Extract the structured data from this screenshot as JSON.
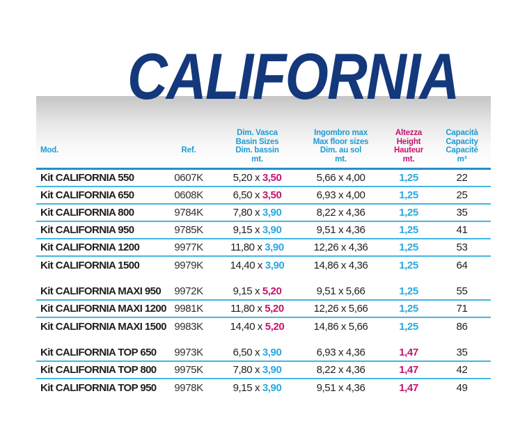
{
  "page": {
    "title": "CALIFORNIA"
  },
  "colors": {
    "navy": "#14387C",
    "cyan": "#2AA9E0",
    "cyan_head": "#1C9BD4",
    "magenta": "#C4146F",
    "row_line": "#45B4E4",
    "header_line": "#2590CC",
    "ink": "#1E1E1E"
  },
  "table": {
    "headers": {
      "mod": "Mod.",
      "ref": "Ref.",
      "basin": [
        "Dim. Vasca",
        "Basin Sizes",
        "Dim. bassin",
        "mt."
      ],
      "floor": [
        "Ingombro max",
        "Max floor sizes",
        "Dim. au sol",
        "mt."
      ],
      "height": [
        "Altezza",
        "Height",
        "Hauteur",
        "mt."
      ],
      "capacity": [
        "Capacità",
        "Capacity",
        "Capacité",
        "m³"
      ]
    },
    "sections": [
      {
        "rows": [
          {
            "model": "Kit CALIFORNIA 550",
            "ref": "0607K",
            "basin_a": "5,20 x ",
            "basin_b": "3,50",
            "basin_b_color": "magenta",
            "floor": "5,66 x 4,00",
            "height": "1,25",
            "height_color": "cyan",
            "capacity": "22"
          },
          {
            "model": "Kit CALIFORNIA 650",
            "ref": "0608K",
            "basin_a": "6,50 x ",
            "basin_b": "3,50",
            "basin_b_color": "magenta",
            "floor": "6,93 x 4,00",
            "height": "1,25",
            "height_color": "cyan",
            "capacity": "25"
          },
          {
            "model": "Kit CALIFORNIA 800",
            "ref": "9784K",
            "basin_a": "7,80 x ",
            "basin_b": "3,90",
            "basin_b_color": "cyan",
            "floor": "8,22 x 4,36",
            "height": "1,25",
            "height_color": "cyan",
            "capacity": "35"
          },
          {
            "model": "Kit CALIFORNIA 950",
            "ref": "9785K",
            "basin_a": "9,15 x ",
            "basin_b": "3,90",
            "basin_b_color": "cyan",
            "floor": "9,51 x 4,36",
            "height": "1,25",
            "height_color": "cyan",
            "capacity": "41"
          },
          {
            "model": "Kit CALIFORNIA 1200",
            "ref": "9977K",
            "basin_a": "11,80 x ",
            "basin_b": "3,90",
            "basin_b_color": "cyan",
            "floor": "12,26 x 4,36",
            "height": "1,25",
            "height_color": "cyan",
            "capacity": "53"
          },
          {
            "model": "Kit CALIFORNIA 1500",
            "ref": "9979K",
            "basin_a": "14,40 x ",
            "basin_b": "3,90",
            "basin_b_color": "cyan",
            "floor": "14,86 x 4,36",
            "height": "1,25",
            "height_color": "cyan",
            "capacity": "64"
          }
        ]
      },
      {
        "rows": [
          {
            "model": "Kit CALIFORNIA MAXI 950",
            "ref": "9972K",
            "basin_a": "9,15 x ",
            "basin_b": "5,20",
            "basin_b_color": "magenta",
            "floor": "9,51 x 5,66",
            "height": "1,25",
            "height_color": "cyan",
            "capacity": "55"
          },
          {
            "model": "Kit CALIFORNIA MAXI 1200",
            "ref": "9981K",
            "basin_a": "11,80 x ",
            "basin_b": "5,20",
            "basin_b_color": "magenta",
            "floor": "12,26 x 5,66",
            "height": "1,25",
            "height_color": "cyan",
            "capacity": "71"
          },
          {
            "model": "Kit CALIFORNIA MAXI 1500",
            "ref": "9983K",
            "basin_a": "14,40 x ",
            "basin_b": "5,20",
            "basin_b_color": "magenta",
            "floor": "14,86 x 5,66",
            "height": "1,25",
            "height_color": "cyan",
            "capacity": "86"
          }
        ]
      },
      {
        "rows": [
          {
            "model": "Kit CALIFORNIA TOP 650",
            "ref": "9973K",
            "basin_a": "6,50 x ",
            "basin_b": "3,90",
            "basin_b_color": "cyan",
            "floor": "6,93 x 4,36",
            "height": "1,47",
            "height_color": "magenta",
            "capacity": "35"
          },
          {
            "model": "Kit CALIFORNIA TOP 800",
            "ref": "9975K",
            "basin_a": "7,80 x ",
            "basin_b": "3,90",
            "basin_b_color": "cyan",
            "floor": "8,22 x 4,36",
            "height": "1,47",
            "height_color": "magenta",
            "capacity": "42"
          },
          {
            "model": "Kit CALIFORNIA TOP 950",
            "ref": "9978K",
            "basin_a": "9,15 x ",
            "basin_b": "3,90",
            "basin_b_color": "cyan",
            "floor": "9,51 x 4,36",
            "height": "1,47",
            "height_color": "magenta",
            "capacity": "49"
          }
        ]
      }
    ]
  }
}
